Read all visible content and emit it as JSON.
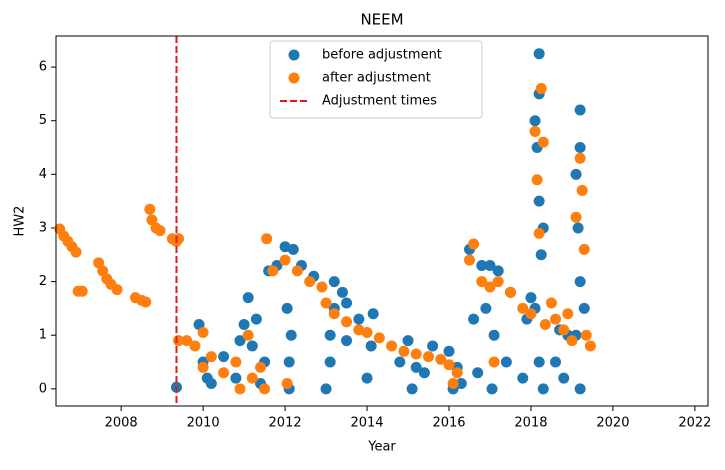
{
  "chart_data": {
    "type": "scatter",
    "title": "NEEM",
    "xlabel": "Year",
    "ylabel": "HW2",
    "xlim": [
      2006.41,
      2022.32
    ],
    "ylim": [
      -0.32,
      6.58
    ],
    "xticks": [
      2008,
      2010,
      2012,
      2014,
      2016,
      2018,
      2020,
      2022
    ],
    "yticks": [
      0,
      1,
      2,
      3,
      4,
      5,
      6
    ],
    "legend": "upper center",
    "series": [
      {
        "name": "before adjustment",
        "color": "#1f77b4",
        "x": [
          2009.35,
          2009.9,
          2010,
          2010.1,
          2010.2,
          2010.5,
          2010.8,
          2010.9,
          2011,
          2011.1,
          2011.2,
          2011.3,
          2011.4,
          2011.5,
          2011.6,
          2011.8,
          2012,
          2012.05,
          2012.1,
          2012.1,
          2012.15,
          2012.2,
          2012.4,
          2012.7,
          2013,
          2013.1,
          2013.1,
          2013.2,
          2013.2,
          2013.4,
          2013.5,
          2013.5,
          2013.8,
          2014,
          2014.1,
          2014.15,
          2014.8,
          2015,
          2015.1,
          2015.2,
          2015.4,
          2015.6,
          2016,
          2016.1,
          2016.2,
          2016.3,
          2016.5,
          2016.6,
          2016.7,
          2016.8,
          2016.9,
          2017,
          2017.05,
          2017.1,
          2017.2,
          2017.4,
          2017.5,
          2017.8,
          2017.9,
          2018,
          2018.1,
          2018.1,
          2018.15,
          2018.2,
          2018.2,
          2018.2,
          2018.2,
          2018.25,
          2018.3,
          2018.3,
          2018.6,
          2018.7,
          2018.8,
          2018.9,
          2019.1,
          2019.1,
          2019.15,
          2019.2,
          2019.2,
          2019.2,
          2019.2,
          2019.3
        ],
        "values": [
          0.03,
          1.2,
          0.5,
          0.2,
          0.1,
          0.6,
          0.2,
          0.9,
          1.2,
          1.7,
          0.8,
          1.3,
          0.1,
          0.5,
          2.2,
          2.3,
          2.65,
          1.5,
          0.5,
          0.0,
          1.0,
          2.6,
          2.3,
          2.1,
          0.0,
          1.0,
          0.5,
          2.0,
          1.5,
          1.8,
          0.9,
          1.6,
          1.3,
          0.2,
          0.8,
          1.4,
          0.5,
          0.9,
          0.0,
          0.4,
          0.3,
          0.8,
          0.7,
          0.0,
          0.4,
          0.1,
          2.6,
          1.3,
          0.3,
          2.3,
          1.5,
          2.3,
          0.0,
          1.0,
          2.2,
          0.5,
          1.8,
          0.2,
          1.3,
          1.7,
          1.5,
          5.0,
          4.5,
          6.25,
          5.5,
          3.5,
          0.5,
          2.5,
          0.0,
          3.0,
          0.5,
          1.1,
          0.2,
          1.0,
          4.0,
          1.0,
          3.0,
          5.2,
          2.0,
          0.0,
          4.5,
          1.5
        ]
      },
      {
        "name": "after adjustment",
        "color": "#ff7f0e",
        "x": [
          2006.5,
          2006.6,
          2006.7,
          2006.8,
          2006.9,
          2006.95,
          2007.05,
          2007.45,
          2007.55,
          2007.65,
          2007.75,
          2007.9,
          2008.35,
          2008.5,
          2008.6,
          2008.7,
          2008.75,
          2008.85,
          2008.95,
          2009.25,
          2009.35,
          2009.4,
          2009.4,
          2009.6,
          2009.8,
          2010,
          2010,
          2010.2,
          2010.5,
          2010.8,
          2010.9,
          2011.1,
          2011.2,
          2011.4,
          2011.5,
          2011.55,
          2011.7,
          2012,
          2012.05,
          2012.3,
          2012.6,
          2012.9,
          2013,
          2013.2,
          2013.5,
          2013.8,
          2014,
          2014.3,
          2014.6,
          2014.9,
          2015.2,
          2015.5,
          2015.8,
          2016,
          2016.1,
          2016.2,
          2016.5,
          2016.6,
          2016.8,
          2017,
          2017.1,
          2017.2,
          2017.5,
          2017.8,
          2018,
          2018.1,
          2018.15,
          2018.2,
          2018.25,
          2018.3,
          2018.35,
          2018.5,
          2018.6,
          2018.8,
          2018.9,
          2019,
          2019.1,
          2019.2,
          2019.25,
          2019.3,
          2019.35,
          2019.45
        ],
        "values": [
          2.98,
          2.85,
          2.75,
          2.65,
          2.55,
          1.82,
          1.82,
          2.35,
          2.2,
          2.05,
          1.95,
          1.85,
          1.7,
          1.65,
          1.62,
          3.35,
          3.15,
          3.0,
          2.95,
          2.8,
          2.75,
          2.8,
          0.9,
          0.9,
          0.8,
          1.05,
          0.4,
          0.6,
          0.3,
          0.5,
          0.0,
          1.0,
          0.2,
          0.4,
          0.0,
          2.8,
          2.2,
          2.4,
          0.1,
          2.2,
          2.0,
          1.9,
          1.6,
          1.4,
          1.25,
          1.1,
          1.05,
          0.95,
          0.8,
          0.7,
          0.65,
          0.6,
          0.55,
          0.45,
          0.1,
          0.3,
          2.4,
          2.7,
          2.0,
          1.9,
          0.5,
          2.0,
          1.8,
          1.5,
          1.4,
          4.8,
          3.9,
          2.9,
          5.6,
          4.6,
          1.2,
          1.6,
          1.3,
          1.1,
          1.4,
          0.9,
          3.2,
          4.3,
          3.7,
          2.6,
          1.0,
          0.8
        ]
      }
    ],
    "vlines": {
      "name": "Adjustment times",
      "color": "#e31a1c",
      "x": [
        2009.35
      ]
    }
  }
}
